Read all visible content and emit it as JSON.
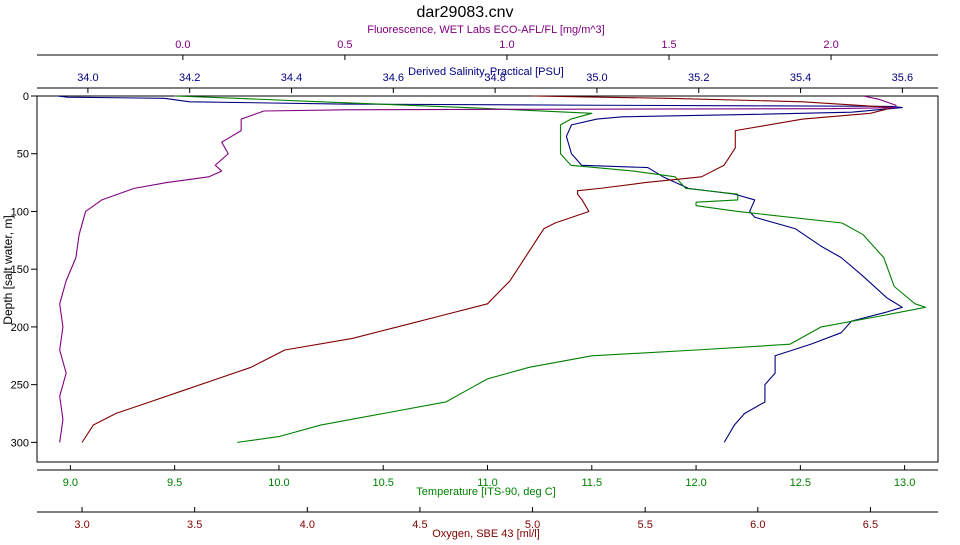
{
  "chart_data": {
    "type": "line",
    "title": "dar29083.cnv",
    "y_axis": {
      "label": "Depth [salt water, m]",
      "range": [
        0,
        317
      ],
      "inverted": true,
      "ticks": [
        "0",
        "50",
        "100",
        "150",
        "200",
        "250",
        "300"
      ]
    },
    "x_axes": [
      {
        "id": "fluorescence",
        "position": "top-outer",
        "label": "Fluorescence, WET Labs ECO-AFL/FL [mg/m^3]",
        "color": "#800080",
        "range": [
          -0.45,
          2.33
        ],
        "ticks": [
          "0.0",
          "0.5",
          "1.0",
          "1.5",
          "2.0"
        ]
      },
      {
        "id": "salinity",
        "position": "top-inner",
        "label": "Derived Salinity, Practical [PSU]",
        "color": "#000080",
        "range": [
          33.9,
          35.67
        ],
        "ticks": [
          "34.0",
          "34.2",
          "34.4",
          "34.6",
          "34.8",
          "35.0",
          "35.2",
          "35.4",
          "35.6"
        ]
      },
      {
        "id": "temperature",
        "position": "bottom-inner",
        "label": "Temperature [ITS-90, deg C]",
        "color": "#008000",
        "range": [
          8.84,
          13.16
        ],
        "ticks": [
          "9.0",
          "9.5",
          "10.0",
          "10.5",
          "11.0",
          "11.5",
          "12.0",
          "12.5",
          "13.0"
        ]
      },
      {
        "id": "oxygen",
        "position": "bottom-outer",
        "label": "Oxygen, SBE 43 [ml/l]",
        "color": "#800000",
        "range": [
          2.8,
          6.8
        ],
        "ticks": [
          "3.0",
          "3.5",
          "4.0",
          "4.5",
          "5.0",
          "5.5",
          "6.0",
          "6.5"
        ]
      }
    ],
    "series": [
      {
        "axis": "salinity",
        "color": "#000080",
        "points": [
          [
            33.94,
            0
          ],
          [
            33.96,
            1
          ],
          [
            34.15,
            2
          ],
          [
            34.2,
            5
          ],
          [
            34.5,
            7
          ],
          [
            35.0,
            8
          ],
          [
            35.3,
            8.5
          ],
          [
            35.58,
            9
          ],
          [
            35.6,
            10
          ],
          [
            35.5,
            14
          ],
          [
            35.3,
            16
          ],
          [
            35.05,
            18
          ],
          [
            35.0,
            20
          ],
          [
            34.95,
            25
          ],
          [
            34.94,
            35
          ],
          [
            34.95,
            50
          ],
          [
            34.97,
            60
          ],
          [
            35.1,
            62
          ],
          [
            35.13,
            70
          ],
          [
            35.18,
            80
          ],
          [
            35.27,
            85
          ],
          [
            35.31,
            90
          ],
          [
            35.3,
            100
          ],
          [
            35.31,
            105
          ],
          [
            35.39,
            115
          ],
          [
            35.44,
            130
          ],
          [
            35.48,
            140
          ],
          [
            35.52,
            155
          ],
          [
            35.57,
            175
          ],
          [
            35.6,
            183
          ],
          [
            35.57,
            187
          ],
          [
            35.5,
            195
          ],
          [
            35.48,
            205
          ],
          [
            35.42,
            215
          ],
          [
            35.35,
            225
          ],
          [
            35.35,
            240
          ],
          [
            35.33,
            250
          ],
          [
            35.33,
            265
          ],
          [
            35.29,
            275
          ],
          [
            35.27,
            285
          ],
          [
            35.25,
            300
          ]
        ]
      },
      {
        "axis": "temperature",
        "color": "#008000",
        "points": [
          [
            9.5,
            0
          ],
          [
            9.8,
            2
          ],
          [
            10.2,
            5
          ],
          [
            10.9,
            10
          ],
          [
            11.5,
            15
          ],
          [
            11.4,
            20
          ],
          [
            11.35,
            25
          ],
          [
            11.35,
            50
          ],
          [
            11.4,
            60
          ],
          [
            11.7,
            65
          ],
          [
            11.9,
            70
          ],
          [
            11.95,
            80
          ],
          [
            12.2,
            85
          ],
          [
            12.2,
            90
          ],
          [
            12.0,
            92
          ],
          [
            12.0,
            95
          ],
          [
            12.2,
            100
          ],
          [
            12.7,
            110
          ],
          [
            12.8,
            120
          ],
          [
            12.9,
            140
          ],
          [
            12.95,
            165
          ],
          [
            13.05,
            180
          ],
          [
            13.1,
            183
          ],
          [
            12.9,
            190
          ],
          [
            12.6,
            200
          ],
          [
            12.45,
            215
          ],
          [
            12.0,
            220
          ],
          [
            11.5,
            225
          ],
          [
            11.2,
            235
          ],
          [
            11.0,
            245
          ],
          [
            10.9,
            255
          ],
          [
            10.8,
            265
          ],
          [
            10.5,
            275
          ],
          [
            10.2,
            285
          ],
          [
            10.0,
            295
          ],
          [
            9.8,
            300
          ]
        ]
      },
      {
        "axis": "oxygen",
        "color": "#800000",
        "points": [
          [
            5.0,
            0
          ],
          [
            5.6,
            2
          ],
          [
            6.2,
            5
          ],
          [
            6.6,
            10
          ],
          [
            6.5,
            15
          ],
          [
            6.2,
            20
          ],
          [
            5.9,
            30
          ],
          [
            5.9,
            45
          ],
          [
            5.85,
            60
          ],
          [
            5.75,
            70
          ],
          [
            5.5,
            75
          ],
          [
            5.3,
            80
          ],
          [
            5.2,
            82
          ],
          [
            5.2,
            85
          ],
          [
            5.22,
            90
          ],
          [
            5.25,
            100
          ],
          [
            5.1,
            110
          ],
          [
            5.05,
            115
          ],
          [
            5.0,
            130
          ],
          [
            4.95,
            145
          ],
          [
            4.9,
            160
          ],
          [
            4.85,
            170
          ],
          [
            4.8,
            180
          ],
          [
            4.6,
            190
          ],
          [
            4.4,
            200
          ],
          [
            4.2,
            210
          ],
          [
            3.9,
            220
          ],
          [
            3.75,
            235
          ],
          [
            3.6,
            245
          ],
          [
            3.45,
            255
          ],
          [
            3.3,
            265
          ],
          [
            3.15,
            275
          ],
          [
            3.05,
            285
          ],
          [
            3.0,
            300
          ]
        ]
      },
      {
        "axis": "fluorescence",
        "color": "#800080",
        "points": [
          [
            2.1,
            0
          ],
          [
            2.15,
            3
          ],
          [
            2.2,
            8
          ],
          [
            2.2,
            10
          ],
          [
            2.0,
            11
          ],
          [
            1.0,
            11.5
          ],
          [
            0.5,
            12
          ],
          [
            0.25,
            13
          ],
          [
            0.18,
            20
          ],
          [
            0.18,
            30
          ],
          [
            0.12,
            40
          ],
          [
            0.14,
            50
          ],
          [
            0.1,
            60
          ],
          [
            0.12,
            65
          ],
          [
            0.08,
            70
          ],
          [
            -0.05,
            75
          ],
          [
            -0.15,
            80
          ],
          [
            -0.25,
            90
          ],
          [
            -0.3,
            100
          ],
          [
            -0.32,
            120
          ],
          [
            -0.33,
            140
          ],
          [
            -0.36,
            160
          ],
          [
            -0.38,
            180
          ],
          [
            -0.37,
            200
          ],
          [
            -0.38,
            220
          ],
          [
            -0.36,
            240
          ],
          [
            -0.38,
            260
          ],
          [
            -0.37,
            280
          ],
          [
            -0.38,
            300
          ]
        ]
      }
    ]
  }
}
